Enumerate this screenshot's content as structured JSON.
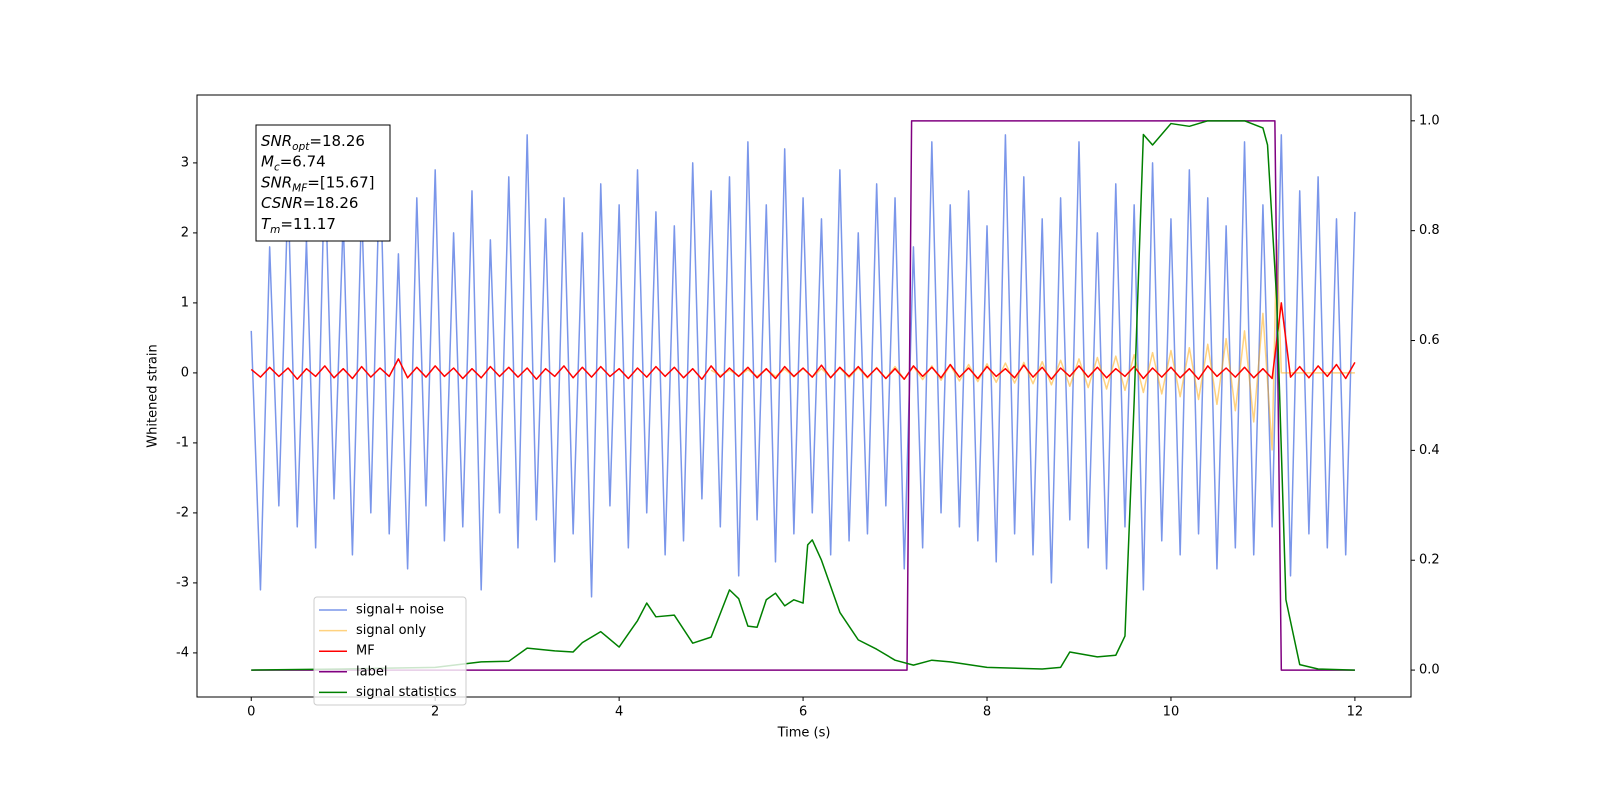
{
  "chart_data": {
    "type": "line",
    "xlabel": "Time (s)",
    "ylabel": "Whitened strain",
    "xlim": [
      -0.59,
      12.61
    ],
    "ylim": [
      -4.63,
      3.97
    ],
    "y2lim": [
      -0.049,
      1.047
    ],
    "xticks": [
      0,
      2,
      4,
      6,
      8,
      10,
      12
    ],
    "yticks": [
      -4,
      -3,
      -2,
      -1,
      0,
      1,
      2,
      3
    ],
    "y2ticks": [
      {
        "value": 0,
        "label": "0.0"
      },
      {
        "value": 0.2,
        "label": "0.2"
      },
      {
        "value": 0.4,
        "label": "0.4"
      },
      {
        "value": 0.6,
        "label": "0.6"
      },
      {
        "value": 0.8,
        "label": "0.8"
      },
      {
        "value": 1.0,
        "label": "1.0"
      }
    ],
    "legend_loc": "lower left",
    "x": [
      0,
      0.1,
      0.2,
      0.3,
      0.4,
      0.5,
      0.6,
      0.7,
      0.8,
      0.9,
      1.0,
      1.1,
      1.2,
      1.3,
      1.4,
      1.5,
      1.6,
      1.7,
      1.8,
      1.9,
      2.0,
      2.1,
      2.2,
      2.3,
      2.4,
      2.5,
      2.6,
      2.7,
      2.8,
      2.9,
      3.0,
      3.1,
      3.2,
      3.3,
      3.4,
      3.5,
      3.6,
      3.7,
      3.8,
      3.9,
      4.0,
      4.1,
      4.2,
      4.3,
      4.4,
      4.5,
      4.6,
      4.7,
      4.8,
      4.9,
      5.0,
      5.1,
      5.2,
      5.3,
      5.4,
      5.5,
      5.6,
      5.7,
      5.8,
      5.9,
      6.0,
      6.1,
      6.2,
      6.3,
      6.4,
      6.5,
      6.6,
      6.7,
      6.8,
      6.9,
      7.0,
      7.1,
      7.2,
      7.3,
      7.4,
      7.5,
      7.6,
      7.7,
      7.8,
      7.9,
      8.0,
      8.1,
      8.2,
      8.3,
      8.4,
      8.5,
      8.6,
      8.7,
      8.8,
      8.9,
      9.0,
      9.1,
      9.2,
      9.3,
      9.4,
      9.5,
      9.6,
      9.7,
      9.8,
      9.9,
      10.0,
      10.1,
      10.2,
      10.3,
      10.4,
      10.5,
      10.6,
      10.7,
      10.8,
      10.9,
      11.0,
      11.1,
      11.2,
      11.3,
      11.4,
      11.5,
      11.6,
      11.7,
      11.8,
      11.9,
      12.0
    ],
    "series": [
      {
        "name": "signal+ noise",
        "color": "rgba(65,105,225,0.7)",
        "values": [
          0.6,
          -3.1,
          1.8,
          -1.9,
          2.6,
          -2.2,
          1.9,
          -2.5,
          3.0,
          -1.8,
          2.2,
          -2.6,
          2.4,
          -2.0,
          3.1,
          -2.3,
          1.7,
          -2.8,
          2.5,
          -1.9,
          2.9,
          -2.4,
          2.0,
          -2.2,
          2.6,
          -3.1,
          1.9,
          -2.0,
          2.8,
          -2.5,
          3.4,
          -2.1,
          2.2,
          -2.7,
          2.5,
          -2.3,
          2.0,
          -3.2,
          2.7,
          -1.9,
          2.4,
          -2.5,
          2.9,
          -2.0,
          2.3,
          -2.6,
          2.1,
          -2.4,
          3.0,
          -1.8,
          2.6,
          -2.2,
          2.8,
          -2.9,
          3.3,
          -2.1,
          2.4,
          -2.7,
          3.2,
          -2.3,
          2.5,
          -2.0,
          2.2,
          -2.6,
          2.9,
          -2.4,
          2.0,
          -2.3,
          2.7,
          -1.9,
          2.5,
          -2.8,
          1.8,
          -2.5,
          3.3,
          -2.0,
          2.4,
          -2.2,
          2.6,
          -2.4,
          2.1,
          -2.7,
          3.4,
          -2.3,
          2.8,
          -2.6,
          2.2,
          -3.0,
          2.5,
          -2.1,
          3.3,
          -2.5,
          2.0,
          -2.8,
          2.7,
          -2.2,
          2.4,
          -3.1,
          3.0,
          -2.4,
          2.2,
          -2.6,
          2.9,
          -2.3,
          2.5,
          -2.8,
          2.1,
          -2.5,
          3.3,
          -2.6,
          2.4,
          -2.2,
          3.4,
          -2.9,
          2.6,
          -2.3,
          2.8,
          -2.5,
          2.2,
          -2.6,
          2.3
        ]
      },
      {
        "name": "signal only",
        "color": "rgba(255,165,0,0.5)",
        "x": [
          5.0,
          5.1,
          5.2,
          5.3,
          5.4,
          5.5,
          5.6,
          5.7,
          5.8,
          5.9,
          6.0,
          6.1,
          6.2,
          6.3,
          6.4,
          6.5,
          6.6,
          6.7,
          6.8,
          6.9,
          7.0,
          7.1,
          7.2,
          7.3,
          7.4,
          7.5,
          7.6,
          7.7,
          7.8,
          7.9,
          8.0,
          8.1,
          8.2,
          8.3,
          8.4,
          8.5,
          8.6,
          8.7,
          8.8,
          8.9,
          9.0,
          9.1,
          9.2,
          9.3,
          9.4,
          9.5,
          9.6,
          9.7,
          9.8,
          9.9,
          10.0,
          10.1,
          10.2,
          10.3,
          10.4,
          10.5,
          10.6,
          10.7,
          10.8,
          10.9,
          11.0,
          11.1,
          11.15,
          11.2,
          12
        ],
        "values": [
          0.04,
          -0.04,
          0.04,
          -0.045,
          0.045,
          -0.05,
          0.05,
          -0.05,
          0.055,
          -0.055,
          0.06,
          -0.06,
          0.062,
          -0.065,
          0.068,
          -0.07,
          0.072,
          -0.075,
          0.078,
          -0.08,
          0.09,
          -0.09,
          0.092,
          -0.095,
          0.1,
          -0.105,
          0.11,
          -0.115,
          0.12,
          -0.125,
          0.13,
          -0.135,
          0.14,
          -0.145,
          0.15,
          -0.155,
          0.16,
          -0.17,
          0.18,
          -0.19,
          0.2,
          -0.21,
          0.22,
          -0.23,
          0.24,
          -0.25,
          0.26,
          -0.28,
          0.29,
          -0.3,
          0.32,
          -0.34,
          0.36,
          -0.38,
          0.41,
          -0.45,
          0.49,
          -0.54,
          0.6,
          -0.7,
          0.85,
          -1.1,
          1.9,
          0,
          0
        ]
      },
      {
        "name": "MF",
        "color": "red",
        "values": [
          0.05,
          -0.06,
          0.08,
          -0.05,
          0.07,
          -0.09,
          0.06,
          -0.05,
          0.1,
          -0.07,
          0.06,
          -0.08,
          0.09,
          -0.06,
          0.07,
          -0.05,
          0.2,
          -0.07,
          0.08,
          -0.06,
          0.1,
          -0.05,
          0.07,
          -0.08,
          0.06,
          -0.07,
          0.09,
          -0.05,
          0.08,
          -0.06,
          0.07,
          -0.09,
          0.06,
          -0.05,
          0.1,
          -0.07,
          0.08,
          -0.06,
          0.09,
          -0.05,
          0.06,
          -0.08,
          0.07,
          -0.06,
          0.09,
          -0.05,
          0.08,
          -0.07,
          0.06,
          -0.09,
          0.1,
          -0.06,
          0.07,
          -0.05,
          0.08,
          -0.07,
          0.06,
          -0.08,
          0.09,
          -0.05,
          0.07,
          -0.06,
          0.11,
          -0.07,
          0.08,
          -0.05,
          0.09,
          -0.06,
          0.07,
          -0.08,
          0.06,
          -0.09,
          0.1,
          -0.05,
          0.08,
          -0.07,
          0.12,
          -0.06,
          0.07,
          -0.08,
          0.09,
          -0.05,
          0.06,
          -0.07,
          0.11,
          -0.06,
          0.08,
          -0.09,
          0.07,
          -0.05,
          0.1,
          -0.06,
          0.08,
          -0.07,
          0.06,
          -0.05,
          0.09,
          -0.08,
          0.07,
          -0.06,
          0.08,
          -0.07,
          0.06,
          -0.09,
          0.1,
          -0.05,
          0.07,
          -0.06,
          0.08,
          -0.07,
          0.06,
          -0.08,
          1.0,
          -0.06,
          0.09,
          -0.07,
          0.1,
          -0.05,
          0.12,
          -0.08,
          0.15
        ]
      },
      {
        "name": "label",
        "color": "purple",
        "axis": "y2",
        "x": [
          0,
          7.13,
          7.18,
          11.13,
          11.2,
          12
        ],
        "values": [
          0,
          0,
          1,
          1,
          0,
          0
        ]
      },
      {
        "name": "signal statistics",
        "color": "green",
        "axis": "y2",
        "x": [
          0,
          1.0,
          2.0,
          2.5,
          2.8,
          3.0,
          3.3,
          3.5,
          3.6,
          3.8,
          4.0,
          4.2,
          4.3,
          4.4,
          4.6,
          4.8,
          5.0,
          5.2,
          5.3,
          5.4,
          5.5,
          5.6,
          5.7,
          5.8,
          5.9,
          6.0,
          6.05,
          6.1,
          6.2,
          6.4,
          6.6,
          6.8,
          7.0,
          7.2,
          7.4,
          7.6,
          8.0,
          8.6,
          8.8,
          8.9,
          9.1,
          9.2,
          9.4,
          9.5,
          9.6,
          9.7,
          9.8,
          10.0,
          10.2,
          10.4,
          10.8,
          11.0,
          11.05,
          11.15,
          11.25,
          11.4,
          11.6,
          12.0
        ],
        "values": [
          0,
          0.002,
          0.005,
          0.015,
          0.016,
          0.04,
          0.035,
          0.033,
          0.05,
          0.07,
          0.042,
          0.09,
          0.122,
          0.097,
          0.1,
          0.049,
          0.06,
          0.146,
          0.13,
          0.08,
          0.078,
          0.128,
          0.14,
          0.117,
          0.128,
          0.122,
          0.228,
          0.237,
          0.2,
          0.105,
          0.055,
          0.038,
          0.018,
          0.009,
          0.018,
          0.015,
          0.005,
          0.002,
          0.005,
          0.033,
          0.027,
          0.024,
          0.027,
          0.062,
          0.49,
          0.975,
          0.956,
          0.995,
          0.99,
          1.0,
          1.0,
          0.987,
          0.956,
          0.674,
          0.128,
          0.01,
          0.002,
          0
        ]
      }
    ],
    "annotation": [
      {
        "symbol": "SNR",
        "subscript": "opt",
        "text": "=18.26"
      },
      {
        "symbol": "M",
        "subscript": "c",
        "text": "=6.74"
      },
      {
        "symbol": "SNR",
        "subscript": "MF",
        "text": "=[15.67]"
      },
      {
        "symbol": "CSNR",
        "text": "=18.26"
      },
      {
        "symbol": "T",
        "subscript": "m",
        "text": "=11.17"
      }
    ]
  }
}
